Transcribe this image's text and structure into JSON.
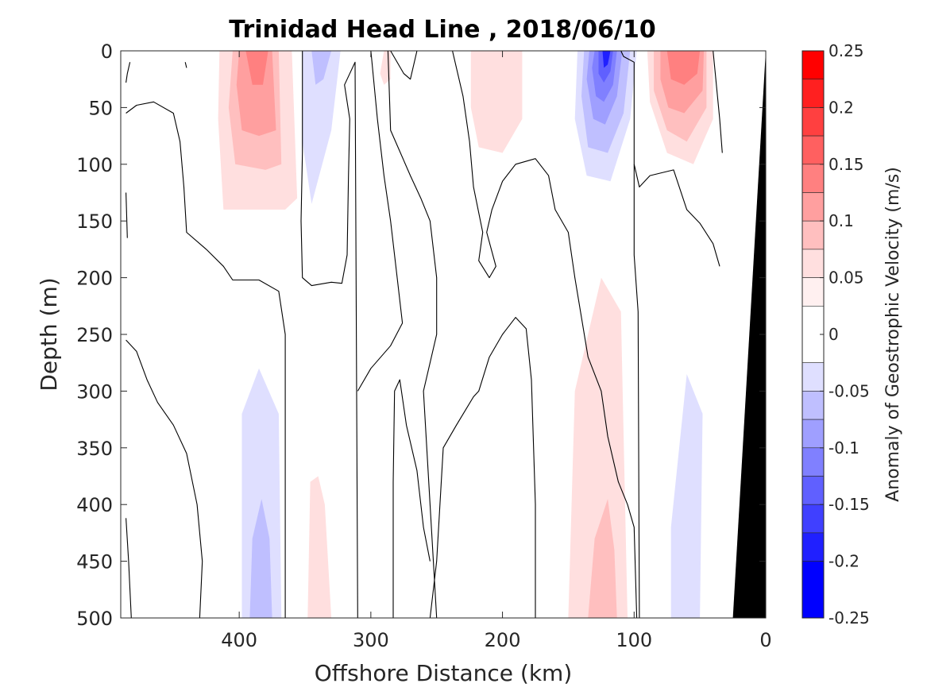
{
  "chart_data": {
    "type": "heatmap",
    "title": "Trinidad Head Line , 2018/06/10",
    "xlabel": "Offshore Distance (km)",
    "ylabel": "Depth (m)",
    "colorbar_label": "Anomaly of Geostrophic Velocity (m/s)",
    "xlim": [
      490,
      0
    ],
    "ylim": [
      0,
      500
    ],
    "x_reversed": true,
    "y_reversed": true,
    "x_ticks": [
      400,
      300,
      200,
      100,
      0
    ],
    "y_ticks": [
      0,
      50,
      100,
      150,
      200,
      250,
      300,
      350,
      400,
      450,
      500
    ],
    "colorbar": {
      "range": [
        -0.25,
        0.25
      ],
      "ticks": [
        0.25,
        0.2,
        0.15,
        0.1,
        0.05,
        0,
        -0.05,
        -0.1,
        -0.15,
        -0.2,
        -0.25
      ],
      "tick_labels": [
        "0.25",
        "0.2",
        "0.15",
        "0.1",
        "0.05",
        "0",
        "-0.05",
        "-0.1",
        "-0.15",
        "-0.2",
        "-0.25"
      ],
      "levels": [
        {
          "min": 0.225,
          "max": 0.25,
          "color": "#ff0000"
        },
        {
          "min": 0.2,
          "max": 0.225,
          "color": "#ff2020"
        },
        {
          "min": 0.175,
          "max": 0.2,
          "color": "#ff4040"
        },
        {
          "min": 0.15,
          "max": 0.175,
          "color": "#ff6060"
        },
        {
          "min": 0.125,
          "max": 0.15,
          "color": "#ff8080"
        },
        {
          "min": 0.1,
          "max": 0.125,
          "color": "#ff9f9f"
        },
        {
          "min": 0.075,
          "max": 0.1,
          "color": "#ffbfbf"
        },
        {
          "min": 0.05,
          "max": 0.075,
          "color": "#ffdfdf"
        },
        {
          "min": 0.025,
          "max": 0.05,
          "color": "#fff0f0"
        },
        {
          "min": -0.025,
          "max": 0.025,
          "color": "#ffffff"
        },
        {
          "min": -0.05,
          "max": -0.025,
          "color": "#dfdfff"
        },
        {
          "min": -0.075,
          "max": -0.05,
          "color": "#bfbfff"
        },
        {
          "min": -0.1,
          "max": -0.075,
          "color": "#9f9fff"
        },
        {
          "min": -0.125,
          "max": -0.1,
          "color": "#8080ff"
        },
        {
          "min": -0.15,
          "max": -0.125,
          "color": "#6060ff"
        },
        {
          "min": -0.175,
          "max": -0.15,
          "color": "#4040ff"
        },
        {
          "min": -0.2,
          "max": -0.175,
          "color": "#2020ff"
        },
        {
          "min": -0.25,
          "max": -0.2,
          "color": "#0000ff"
        }
      ]
    },
    "bathymetry_color": "#000000",
    "bathymetry_outline": [
      [
        25,
        500
      ],
      [
        0,
        0
      ],
      [
        0,
        500
      ]
    ],
    "anomaly_regions": [
      {
        "value": 0.05,
        "outline": [
          [
            415,
            0
          ],
          [
            360,
            0
          ],
          [
            356,
            130
          ],
          [
            365,
            140
          ],
          [
            412,
            140
          ],
          [
            416,
            60
          ]
        ]
      },
      {
        "value": 0.075,
        "outline": [
          [
            405,
            0
          ],
          [
            370,
            0
          ],
          [
            368,
            100
          ],
          [
            380,
            105
          ],
          [
            403,
            100
          ],
          [
            408,
            50
          ]
        ]
      },
      {
        "value": 0.1,
        "outline": [
          [
            400,
            0
          ],
          [
            375,
            0
          ],
          [
            372,
            70
          ],
          [
            385,
            75
          ],
          [
            398,
            70
          ],
          [
            402,
            30
          ]
        ]
      },
      {
        "value": 0.125,
        "outline": [
          [
            395,
            0
          ],
          [
            378,
            0
          ],
          [
            382,
            30
          ],
          [
            390,
            30
          ]
        ]
      },
      {
        "value": -0.05,
        "outline": [
          [
            352,
            0
          ],
          [
            323,
            0
          ],
          [
            330,
            70
          ],
          [
            345,
            135
          ],
          [
            352,
            80
          ]
        ]
      },
      {
        "value": -0.075,
        "outline": [
          [
            345,
            0
          ],
          [
            330,
            0
          ],
          [
            336,
            25
          ],
          [
            342,
            30
          ]
        ]
      },
      {
        "value": 0.05,
        "outline": [
          [
            290,
            0
          ],
          [
            285,
            0
          ],
          [
            285,
            25
          ],
          [
            290,
            30
          ],
          [
            293,
            20
          ]
        ]
      },
      {
        "value": 0.05,
        "outline": [
          [
            224,
            0
          ],
          [
            185,
            0
          ],
          [
            185,
            60
          ],
          [
            200,
            90
          ],
          [
            218,
            85
          ],
          [
            224,
            50
          ]
        ]
      },
      {
        "value": -0.05,
        "outline": [
          [
            143,
            0
          ],
          [
            98,
            0
          ],
          [
            103,
            60
          ],
          [
            118,
            115
          ],
          [
            136,
            110
          ],
          [
            145,
            60
          ]
        ]
      },
      {
        "value": -0.075,
        "outline": [
          [
            138,
            0
          ],
          [
            103,
            0
          ],
          [
            108,
            55
          ],
          [
            120,
            90
          ],
          [
            135,
            85
          ],
          [
            140,
            40
          ]
        ]
      },
      {
        "value": -0.1,
        "outline": [
          [
            134,
            0
          ],
          [
            109,
            0
          ],
          [
            113,
            40
          ],
          [
            122,
            65
          ],
          [
            131,
            60
          ],
          [
            136,
            25
          ]
        ]
      },
      {
        "value": -0.125,
        "outline": [
          [
            130,
            0
          ],
          [
            113,
            0
          ],
          [
            116,
            30
          ],
          [
            123,
            45
          ],
          [
            129,
            40
          ],
          [
            132,
            15
          ]
        ]
      },
      {
        "value": -0.15,
        "outline": [
          [
            127,
            0
          ],
          [
            116,
            0
          ],
          [
            118,
            18
          ],
          [
            123,
            28
          ],
          [
            127,
            20
          ]
        ]
      },
      {
        "value": -0.2,
        "outline": [
          [
            124,
            0
          ],
          [
            118,
            0
          ],
          [
            120,
            12
          ],
          [
            123,
            15
          ]
        ]
      },
      {
        "value": 0.05,
        "outline": [
          [
            90,
            0
          ],
          [
            40,
            0
          ],
          [
            40,
            60
          ],
          [
            55,
            100
          ],
          [
            75,
            90
          ],
          [
            88,
            45
          ]
        ]
      },
      {
        "value": 0.075,
        "outline": [
          [
            85,
            0
          ],
          [
            45,
            0
          ],
          [
            45,
            50
          ],
          [
            60,
            80
          ],
          [
            75,
            70
          ],
          [
            85,
            35
          ]
        ]
      },
      {
        "value": 0.1,
        "outline": [
          [
            80,
            0
          ],
          [
            47,
            0
          ],
          [
            48,
            35
          ],
          [
            62,
            55
          ],
          [
            74,
            50
          ],
          [
            80,
            25
          ]
        ]
      },
      {
        "value": 0.125,
        "outline": [
          [
            75,
            0
          ],
          [
            50,
            0
          ],
          [
            52,
            20
          ],
          [
            62,
            30
          ],
          [
            72,
            25
          ]
        ]
      },
      {
        "value": -0.05,
        "outline": [
          [
            398,
            500
          ],
          [
            398,
            320
          ],
          [
            385,
            280
          ],
          [
            370,
            320
          ],
          [
            368,
            500
          ]
        ]
      },
      {
        "value": -0.075,
        "outline": [
          [
            392,
            500
          ],
          [
            390,
            430
          ],
          [
            383,
            395
          ],
          [
            377,
            430
          ],
          [
            375,
            500
          ]
        ]
      },
      {
        "value": 0.05,
        "outline": [
          [
            348,
            500
          ],
          [
            346,
            380
          ],
          [
            340,
            375
          ],
          [
            335,
            400
          ],
          [
            330,
            500
          ]
        ]
      },
      {
        "value": 0.05,
        "outline": [
          [
            150,
            500
          ],
          [
            145,
            300
          ],
          [
            125,
            200
          ],
          [
            110,
            230
          ],
          [
            105,
            500
          ]
        ]
      },
      {
        "value": 0.075,
        "outline": [
          [
            135,
            500
          ],
          [
            130,
            430
          ],
          [
            120,
            395
          ],
          [
            115,
            440
          ],
          [
            113,
            500
          ]
        ]
      },
      {
        "value": -0.05,
        "outline": [
          [
            72,
            500
          ],
          [
            72,
            420
          ],
          [
            60,
            285
          ],
          [
            48,
            320
          ],
          [
            50,
            500
          ]
        ]
      }
    ],
    "zero_contours": [
      [
        [
          486,
          28
        ],
        [
          485,
          20
        ],
        [
          483,
          10
        ]
      ],
      [
        [
          440,
          15
        ],
        [
          441,
          10
        ]
      ],
      [
        [
          486,
          55
        ],
        [
          478,
          48
        ],
        [
          465,
          45
        ],
        [
          450,
          55
        ],
        [
          445,
          80
        ],
        [
          442,
          120
        ],
        [
          440,
          160
        ],
        [
          425,
          175
        ],
        [
          412,
          190
        ],
        [
          405,
          202
        ],
        [
          385,
          202
        ],
        [
          370,
          212
        ],
        [
          365,
          250
        ],
        [
          365,
          500
        ]
      ],
      [
        [
          486,
          125
        ],
        [
          485,
          165
        ]
      ],
      [
        [
          486,
          255
        ],
        [
          478,
          265
        ],
        [
          470,
          290
        ],
        [
          462,
          310
        ],
        [
          450,
          330
        ],
        [
          440,
          355
        ],
        [
          432,
          400
        ],
        [
          428,
          450
        ],
        [
          430,
          500
        ]
      ],
      [
        [
          486,
          412
        ],
        [
          484,
          450
        ],
        [
          482,
          500
        ]
      ],
      [
        [
          352,
          0
        ],
        [
          352,
          90
        ],
        [
          353,
          150
        ],
        [
          352,
          200
        ],
        [
          345,
          207
        ],
        [
          330,
          204
        ],
        [
          322,
          205
        ],
        [
          318,
          180
        ],
        [
          317,
          110
        ],
        [
          316,
          60
        ],
        [
          320,
          30
        ],
        [
          312,
          10
        ],
        [
          310,
          500
        ]
      ],
      [
        [
          300,
          0
        ],
        [
          295,
          60
        ],
        [
          290,
          110
        ],
        [
          285,
          150
        ],
        [
          280,
          200
        ],
        [
          276,
          240
        ],
        [
          285,
          260
        ],
        [
          300,
          280
        ],
        [
          310,
          300
        ]
      ],
      [
        [
          287,
          0
        ],
        [
          285,
          70
        ],
        [
          270,
          110
        ],
        [
          262,
          130
        ],
        [
          255,
          150
        ],
        [
          250,
          200
        ],
        [
          250,
          250
        ],
        [
          260,
          300
        ],
        [
          255,
          400
        ],
        [
          250,
          500
        ]
      ],
      [
        [
          285,
          0
        ],
        [
          275,
          20
        ],
        [
          270,
          25
        ],
        [
          265,
          0
        ]
      ],
      [
        [
          283,
          500
        ],
        [
          283,
          380
        ],
        [
          282,
          300
        ],
        [
          278,
          290
        ],
        [
          273,
          330
        ],
        [
          265,
          370
        ],
        [
          260,
          420
        ],
        [
          255,
          450
        ]
      ],
      [
        [
          238,
          0
        ],
        [
          230,
          40
        ],
        [
          225,
          80
        ],
        [
          222,
          120
        ],
        [
          215,
          160
        ],
        [
          218,
          185
        ],
        [
          210,
          200
        ],
        [
          205,
          190
        ],
        [
          212,
          160
        ],
        [
          208,
          140
        ],
        [
          200,
          115
        ],
        [
          190,
          100
        ],
        [
          175,
          95
        ],
        [
          165,
          110
        ],
        [
          160,
          140
        ],
        [
          150,
          160
        ],
        [
          145,
          200
        ],
        [
          135,
          270
        ],
        [
          125,
          300
        ],
        [
          120,
          340
        ],
        [
          112,
          380
        ],
        [
          105,
          400
        ],
        [
          100,
          420
        ],
        [
          98,
          500
        ]
      ],
      [
        [
          255,
          500
        ],
        [
          250,
          450
        ],
        [
          245,
          350
        ],
        [
          235,
          330
        ],
        [
          222,
          305
        ],
        [
          218,
          300
        ],
        [
          210,
          270
        ],
        [
          200,
          250
        ],
        [
          190,
          235
        ],
        [
          182,
          245
        ],
        [
          178,
          290
        ],
        [
          175,
          400
        ],
        [
          175,
          500
        ]
      ],
      [
        [
          110,
          0
        ],
        [
          108,
          5
        ],
        [
          100,
          10
        ],
        [
          100,
          100
        ],
        [
          100,
          180
        ],
        [
          97,
          230
        ],
        [
          96,
          500
        ]
      ],
      [
        [
          100,
          100
        ],
        [
          96,
          120
        ],
        [
          88,
          110
        ],
        [
          70,
          105
        ],
        [
          60,
          140
        ],
        [
          50,
          152
        ],
        [
          40,
          170
        ],
        [
          35,
          190
        ]
      ],
      [
        [
          40,
          0
        ],
        [
          35,
          60
        ],
        [
          33,
          90
        ]
      ]
    ]
  }
}
